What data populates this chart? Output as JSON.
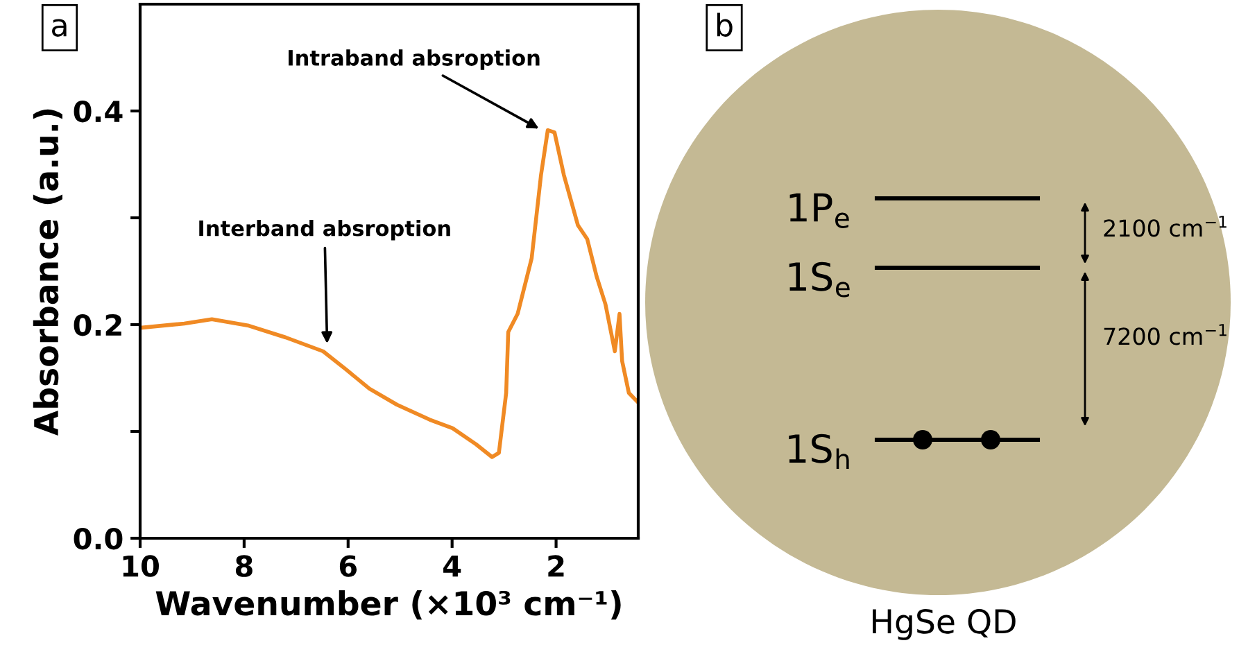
{
  "chart_data": [
    {
      "type": "line",
      "title": "a",
      "xlabel": "Wavenumber (×10³ cm⁻¹)",
      "ylabel": "Absorbance (a.u.)",
      "xlim": [
        10,
        0.42
      ],
      "xticks": [
        10,
        8,
        6,
        4,
        2
      ],
      "ylim": [
        0,
        0.5
      ],
      "yticks": [
        {
          "value": 0.0,
          "label": "0.0"
        },
        {
          "value": 0.1,
          "label": null
        },
        0.2,
        {
          "value": 0.3,
          "label": null
        },
        0.4
      ],
      "grid": false,
      "legend": false,
      "series": [
        {
          "color": "#f08a24",
          "x": [
            10,
            9.15,
            8.62,
            7.91,
            7.2,
            6.48,
            6.04,
            5.59,
            5.06,
            4.43,
            3.99,
            3.54,
            3.23,
            3.1,
            2.96,
            2.92,
            2.74,
            2.47,
            2.29,
            2.16,
            2.03,
            1.85,
            1.58,
            1.4,
            1.22,
            1.05,
            0.87,
            0.78,
            0.73,
            0.6,
            0.42
          ],
          "values": [
            0.197,
            0.201,
            0.205,
            0.199,
            0.188,
            0.175,
            0.158,
            0.14,
            0.125,
            0.111,
            0.103,
            0.088,
            0.076,
            0.08,
            0.136,
            0.193,
            0.21,
            0.262,
            0.34,
            0.382,
            0.38,
            0.34,
            0.293,
            0.28,
            0.245,
            0.219,
            0.175,
            0.21,
            0.166,
            0.136,
            0.127
          ]
        }
      ],
      "annotations": [
        {
          "text": "Intraband absroption",
          "x": 2.2,
          "y": 0.38
        },
        {
          "text": "Interband absroption",
          "x": 6.4,
          "y": 0.175
        }
      ]
    },
    {
      "type": "other",
      "title": "b",
      "annotations": [
        "1P$_{e}$",
        "1S$_{e}$",
        "1S$_{h}$",
        "2100 cm$^{−1}$",
        "7200 cm$^{−1}$",
        "HgSe QD"
      ]
    }
  ]
}
